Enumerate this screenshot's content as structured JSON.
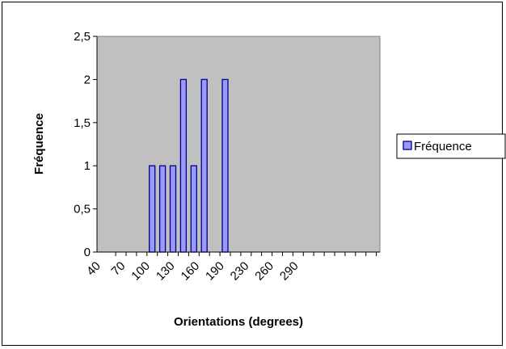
{
  "chart_data": {
    "type": "bar",
    "title": "",
    "xlabel": "Orientations (degrees)",
    "ylabel": "Fréquence",
    "ylim": [
      0,
      2.5
    ],
    "y_ticks": [
      "0",
      "0,5",
      "1",
      "1,5",
      "2",
      "2,5"
    ],
    "y_tick_values": [
      0,
      0.5,
      1,
      1.5,
      2,
      2.5
    ],
    "x_tick_labels": [
      "40",
      "70",
      "100",
      "130",
      "160",
      "190",
      "230",
      "260",
      "290"
    ],
    "categories": [
      "40",
      "50",
      "60",
      "70",
      "80",
      "90",
      "100",
      "110",
      "120",
      "130",
      "140",
      "150",
      "160",
      "170",
      "180",
      "190",
      "200",
      "210",
      "220",
      "230",
      "240",
      "250",
      "260",
      "270",
      "280",
      "290",
      "300",
      "310",
      "320",
      "330",
      "340",
      "350"
    ],
    "series": [
      {
        "name": "Fréquence",
        "values": [
          0,
          0,
          0,
          1,
          1,
          1,
          2,
          1,
          2,
          0,
          2,
          0,
          0,
          0,
          0,
          0,
          0,
          0,
          0,
          0,
          0,
          0,
          0,
          0,
          0,
          0,
          0,
          0,
          0,
          0,
          0,
          0
        ]
      }
    ],
    "grid": false,
    "legend_position": "right",
    "colors": {
      "plot_background": "#c0c0c0",
      "bar_fill": "#9999ff",
      "bar_stroke": "#000080"
    }
  }
}
